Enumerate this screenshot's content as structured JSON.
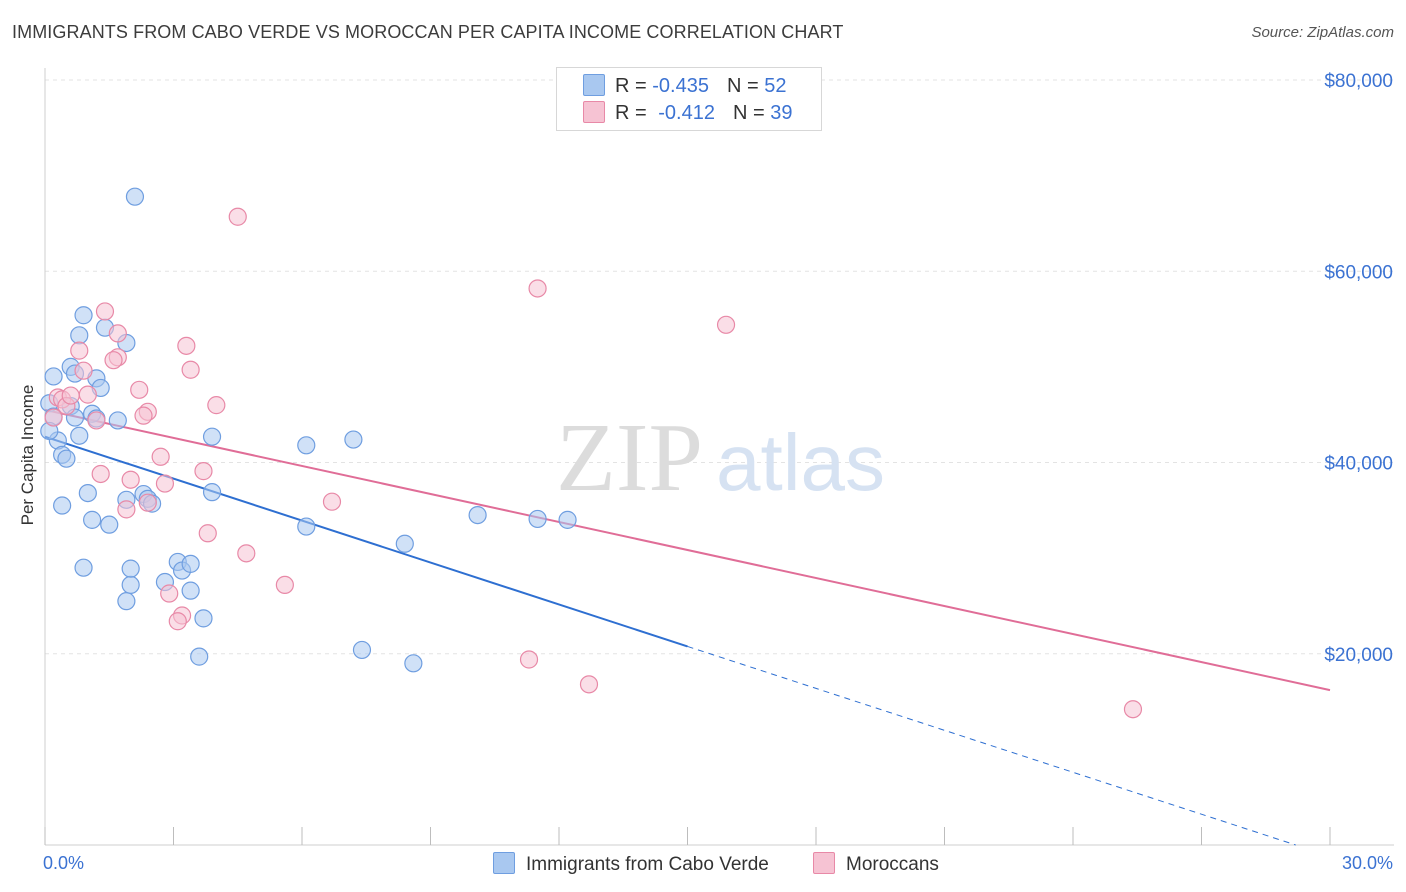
{
  "header": {
    "title": "IMMIGRANTS FROM CABO VERDE VS MOROCCAN PER CAPITA INCOME CORRELATION CHART",
    "source": "Source: ZipAtlas.com"
  },
  "watermark": {
    "zip": "ZIP",
    "atlas": "atlas"
  },
  "legend": {
    "rows": [
      {
        "r_label": "R = ",
        "r_value": "-0.435",
        "n_label": "N = ",
        "n_value": "52",
        "color": "#a9c8f0",
        "border": "#6f9ee0"
      },
      {
        "r_label": "R = ",
        "r_value": "-0.412",
        "n_label": "N = ",
        "n_value": "39",
        "color": "#f6c3d3",
        "border": "#e889a7"
      }
    ]
  },
  "bottom_legend": {
    "items": [
      {
        "label": "Immigrants from Cabo Verde",
        "color": "#a9c8f0",
        "border": "#6f9ee0"
      },
      {
        "label": "Moroccans",
        "color": "#f6c3d3",
        "border": "#e889a7"
      }
    ]
  },
  "chart_data": {
    "type": "scatter",
    "title": "IMMIGRANTS FROM CABO VERDE VS MOROCCAN PER CAPITA INCOME CORRELATION CHART",
    "xlabel": "",
    "ylabel": "Per Capita Income",
    "xlim": [
      0,
      30
    ],
    "ylim": [
      0,
      80000
    ],
    "x_tick_labels": [
      "0.0%",
      "30.0%"
    ],
    "y_ticks": [
      20000,
      40000,
      60000,
      80000
    ],
    "y_tick_labels": [
      "$20,000",
      "$40,000",
      "$60,000",
      "$80,000"
    ],
    "grid": true,
    "series": [
      {
        "name": "Immigrants from Cabo Verde",
        "color": "#6f9ee0",
        "fill": "#a9c8f0",
        "line_color": "#2e6fd1",
        "trend": {
          "x_start": 0,
          "y_start": 42700,
          "x_solid_end": 15,
          "x_end": 29.2,
          "y_end": 0
        },
        "points": [
          [
            2.1,
            67800
          ],
          [
            0.2,
            49000
          ],
          [
            0.6,
            50000
          ],
          [
            0.7,
            49300
          ],
          [
            0.8,
            53300
          ],
          [
            0.9,
            55400
          ],
          [
            1.2,
            48800
          ],
          [
            1.3,
            47800
          ],
          [
            1.4,
            54100
          ],
          [
            1.9,
            52500
          ],
          [
            0.1,
            46200
          ],
          [
            0.2,
            44800
          ],
          [
            0.3,
            42300
          ],
          [
            0.4,
            40800
          ],
          [
            0.5,
            40400
          ],
          [
            0.6,
            45900
          ],
          [
            0.7,
            44700
          ],
          [
            0.8,
            42800
          ],
          [
            1.1,
            45100
          ],
          [
            1.2,
            44600
          ],
          [
            1.7,
            44400
          ],
          [
            0.1,
            43300
          ],
          [
            0.4,
            35500
          ],
          [
            1.0,
            36800
          ],
          [
            1.1,
            34000
          ],
          [
            1.5,
            33500
          ],
          [
            1.9,
            36100
          ],
          [
            2.3,
            36700
          ],
          [
            2.4,
            36200
          ],
          [
            2.5,
            35700
          ],
          [
            0.9,
            29000
          ],
          [
            1.9,
            25500
          ],
          [
            2.0,
            27200
          ],
          [
            2.0,
            28900
          ],
          [
            2.8,
            27500
          ],
          [
            3.1,
            29600
          ],
          [
            3.2,
            28700
          ],
          [
            3.4,
            29400
          ],
          [
            3.4,
            26600
          ],
          [
            3.6,
            19700
          ],
          [
            3.7,
            23700
          ],
          [
            3.9,
            42700
          ],
          [
            3.9,
            36900
          ],
          [
            6.1,
            41800
          ],
          [
            6.1,
            33300
          ],
          [
            7.2,
            42400
          ],
          [
            7.4,
            20400
          ],
          [
            8.4,
            31500
          ],
          [
            8.6,
            19000
          ],
          [
            10.1,
            34500
          ],
          [
            11.5,
            34100
          ],
          [
            12.2,
            34000
          ]
        ]
      },
      {
        "name": "Moroccans",
        "color": "#e889a7",
        "fill": "#f6c3d3",
        "line_color": "#e06d97",
        "trend": {
          "x_start": 0,
          "y_start": 45500,
          "x_end": 30,
          "y_end": 16200
        },
        "points": [
          [
            4.5,
            65700
          ],
          [
            11.5,
            58200
          ],
          [
            15.9,
            54400
          ],
          [
            1.4,
            55800
          ],
          [
            1.7,
            53500
          ],
          [
            1.7,
            51000
          ],
          [
            3.3,
            52200
          ],
          [
            3.4,
            49700
          ],
          [
            0.8,
            51700
          ],
          [
            0.9,
            49600
          ],
          [
            1.6,
            50700
          ],
          [
            0.3,
            46800
          ],
          [
            0.4,
            46600
          ],
          [
            0.5,
            45900
          ],
          [
            1.0,
            47100
          ],
          [
            1.2,
            44400
          ],
          [
            2.2,
            47600
          ],
          [
            2.4,
            45300
          ],
          [
            2.3,
            44900
          ],
          [
            4.0,
            46000
          ],
          [
            0.2,
            44700
          ],
          [
            2.7,
            40600
          ],
          [
            3.7,
            39100
          ],
          [
            1.3,
            38800
          ],
          [
            2.0,
            38200
          ],
          [
            2.8,
            37800
          ],
          [
            1.9,
            35100
          ],
          [
            2.4,
            35800
          ],
          [
            6.7,
            35900
          ],
          [
            3.8,
            32600
          ],
          [
            4.7,
            30500
          ],
          [
            5.6,
            27200
          ],
          [
            2.9,
            26300
          ],
          [
            3.2,
            24000
          ],
          [
            3.1,
            23400
          ],
          [
            11.3,
            19400
          ],
          [
            12.7,
            16800
          ],
          [
            25.4,
            14200
          ],
          [
            0.6,
            47000
          ]
        ]
      }
    ]
  }
}
